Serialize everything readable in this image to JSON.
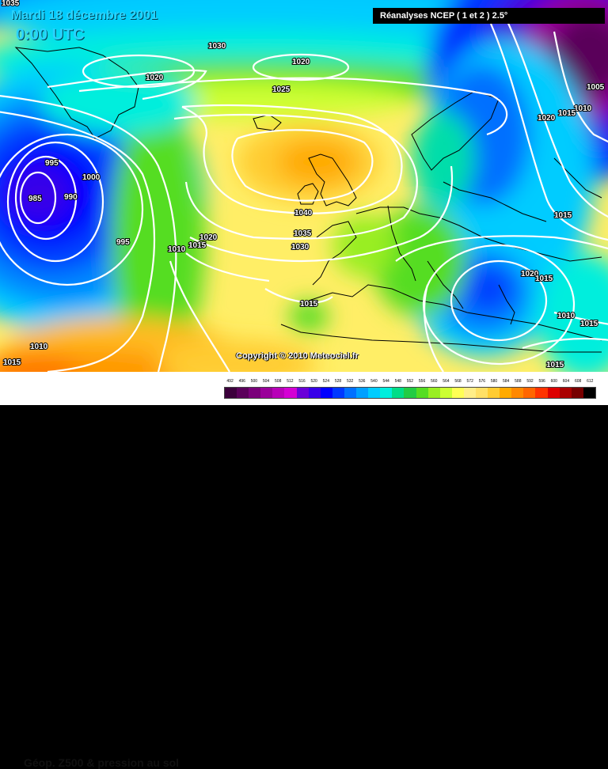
{
  "title": {
    "date": "Mardi 18 décembre 2001",
    "time": "0:00 UTC"
  },
  "source_label": "Réanalyses NCEP ( 1 et 2 ) 2.5°",
  "copyright": "Copyright © 2010 Meteociel.fr",
  "map_description": "Géop. Z500 & pression au sol",
  "legend": {
    "values": [
      "492",
      "496",
      "500",
      "504",
      "508",
      "512",
      "516",
      "520",
      "524",
      "528",
      "532",
      "536",
      "540",
      "544",
      "548",
      "552",
      "556",
      "560",
      "564",
      "568",
      "572",
      "576",
      "580",
      "584",
      "588",
      "592",
      "596",
      "600",
      "604",
      "608",
      "612"
    ],
    "colors": [
      "#3b003b",
      "#5a005a",
      "#7a007a",
      "#9a009a",
      "#b800b8",
      "#d400d4",
      "#6a00d8",
      "#3800e8",
      "#0000ff",
      "#0038ff",
      "#0070ff",
      "#00a0ff",
      "#00ccff",
      "#00eedd",
      "#00dd88",
      "#22cc44",
      "#55dd22",
      "#99ee22",
      "#ccff33",
      "#ffff55",
      "#ffee88",
      "#ffe066",
      "#ffcc33",
      "#ffaa00",
      "#ff8800",
      "#ff6600",
      "#ff3300",
      "#dd0000",
      "#aa0000",
      "#770000",
      "#000000"
    ]
  },
  "isobar_labels": [
    {
      "value": "1035"
    },
    {
      "value": "1030"
    },
    {
      "value": "1020"
    },
    {
      "value": "1020"
    },
    {
      "value": "1025"
    },
    {
      "value": "995"
    },
    {
      "value": "1000"
    },
    {
      "value": "985"
    },
    {
      "value": "990"
    },
    {
      "value": "995"
    },
    {
      "value": "1010"
    },
    {
      "value": "1015"
    },
    {
      "value": "1020"
    },
    {
      "value": "1040"
    },
    {
      "value": "1035"
    },
    {
      "value": "1030"
    },
    {
      "value": "1015"
    },
    {
      "value": "1010"
    },
    {
      "value": "1015"
    },
    {
      "value": "1020"
    },
    {
      "value": "1015"
    },
    {
      "value": "1010"
    },
    {
      "value": "1015"
    },
    {
      "value": "1015"
    },
    {
      "value": "1005"
    },
    {
      "value": "1010"
    },
    {
      "value": "1015"
    },
    {
      "value": "1020"
    },
    {
      "value": "1015"
    }
  ]
}
